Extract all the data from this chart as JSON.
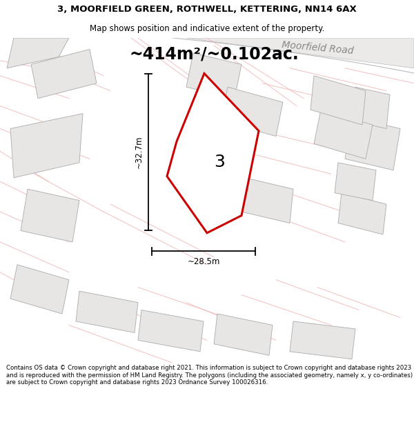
{
  "title_line1": "3, MOORFIELD GREEN, ROTHWELL, KETTERING, NN14 6AX",
  "title_line2": "Map shows position and indicative extent of the property.",
  "area_text": "~414m²/~0.102ac.",
  "width_label": "~28.5m",
  "height_label": "~32.7m",
  "number_label": "3",
  "road_label": "Moorfield Road",
  "footer_text": "Contains OS data © Crown copyright and database right 2021. This information is subject to Crown copyright and database rights 2023 and is reproduced with the permission of HM Land Registry. The polygons (including the associated geometry, namely x, y co-ordinates) are subject to Crown copyright and database rights 2023 Ordnance Survey 100026316.",
  "bg_color": "#ffffff",
  "map_bg_color": "#ffffff",
  "building_fill": "#e8e6e4",
  "building_edge": "#aaaaaa",
  "road_fill": "#e8e6e4",
  "road_edge_pink": "#f0b0b0",
  "road_center_gray": "#cccccc",
  "main_plot_fill": "#e8e6e4",
  "main_plot_edge": "#cc0000",
  "title_fontsize": 9.5,
  "subtitle_fontsize": 8.5,
  "area_fontsize": 17,
  "label_fontsize": 8.5,
  "number_fontsize": 18,
  "road_fontsize": 10,
  "footer_fontsize": 6.2
}
